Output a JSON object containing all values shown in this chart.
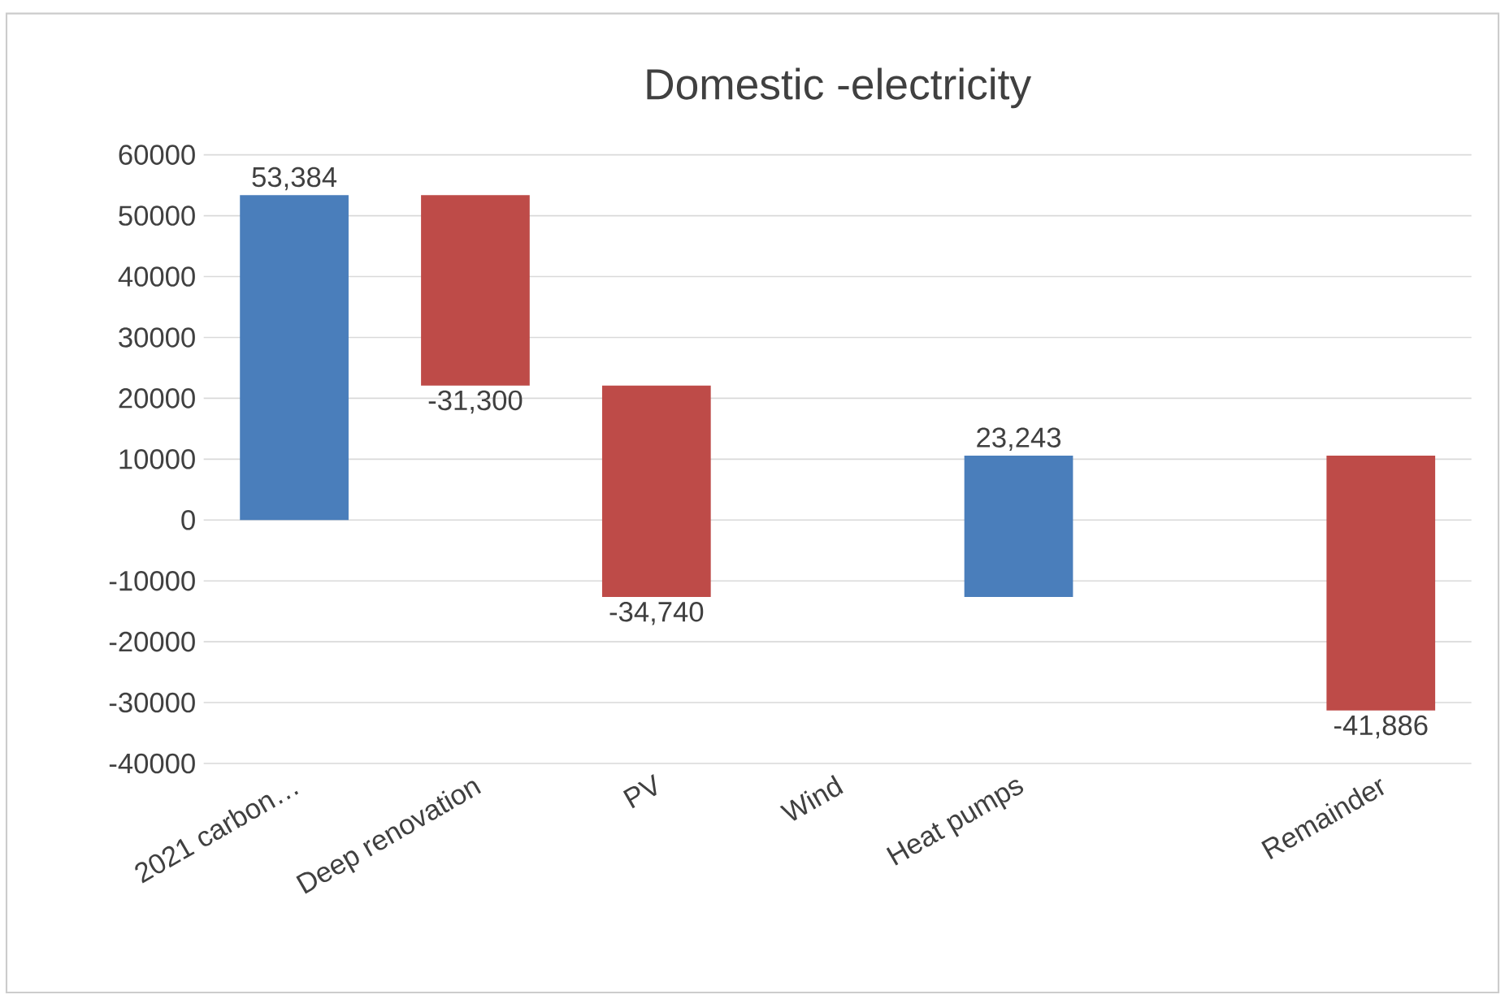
{
  "chart_data": {
    "type": "bar",
    "title": "Domestic -electricity",
    "categories": [
      "2021 carbon…",
      "Deep renovation",
      "PV",
      "Wind",
      "Heat pumps",
      null,
      "Remainder"
    ],
    "values": [
      53384,
      -31300,
      -34740,
      null,
      23243,
      null,
      -41886
    ],
    "base": [
      0,
      53384,
      22084,
      null,
      -12656,
      null,
      10587
    ],
    "colors": [
      "#4a7ebb",
      "#be4b48",
      "#be4b48",
      null,
      "#4a7ebb",
      null,
      "#be4b48"
    ],
    "value_labels": [
      "53,384",
      "-31,300",
      "-34,740",
      null,
      "23,243",
      null,
      "-41,886"
    ],
    "ylim": [
      -40000,
      60000
    ],
    "yticks": [
      -40000,
      -30000,
      -20000,
      -10000,
      0,
      10000,
      20000,
      30000,
      40000,
      50000,
      60000
    ],
    "grid": "y"
  }
}
